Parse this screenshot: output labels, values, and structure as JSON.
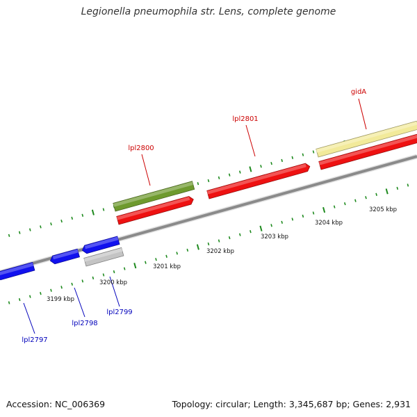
{
  "title": "Legionella pneumophila str. Lens, complete genome",
  "footer": {
    "accession": "Accession: NC_006369",
    "summary": "Topology: circular; Length: 3,345,687 bp; Genes: 2,931"
  },
  "colors": {
    "backbone": "#8a8a8a",
    "forward_gene": "#ee1111",
    "reverse_gene": "#1111ee",
    "olive_feature": "#6e9a2e",
    "yellow_feature": "#f2ea9a",
    "grey_feature": "#c4c4c4",
    "tick": "#1e8a1e",
    "forward_label": "#cc0000",
    "reverse_label": "#0000bb"
  },
  "scale": {
    "ticks": [
      "3199 kbp",
      "3200 kbp",
      "3201 kbp",
      "3202 kbp",
      "3203 kbp",
      "3204 kbp",
      "3205 kbp"
    ]
  },
  "genes": [
    {
      "label": "lpl2797",
      "strand": "reverse"
    },
    {
      "label": "lpl2798",
      "strand": "reverse"
    },
    {
      "label": "lpl2799",
      "strand": "reverse"
    },
    {
      "label": "lpl2800",
      "strand": "forward"
    },
    {
      "label": "lpl2801",
      "strand": "forward"
    },
    {
      "label": "gidA",
      "strand": "forward"
    }
  ]
}
